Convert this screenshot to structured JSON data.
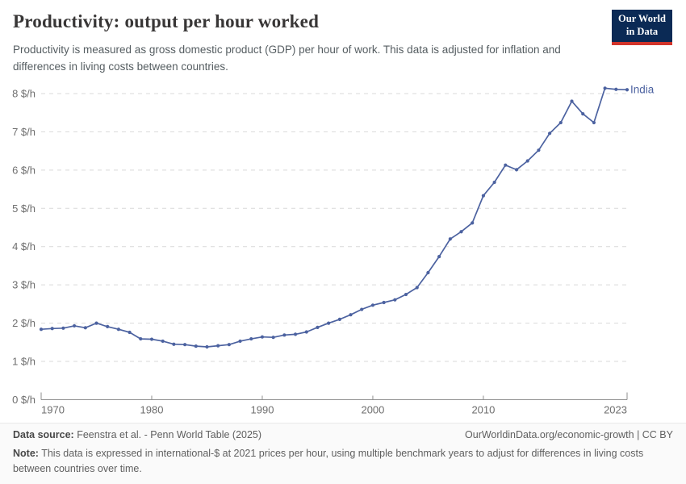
{
  "header": {
    "title": "Productivity: output per hour worked",
    "subtitle": "Productivity is measured as gross domestic product (GDP) per hour of work. This data is adjusted for inflation and differences in living costs between countries.",
    "logo": {
      "line1": "Our World",
      "line2": "in Data",
      "bg_color": "#0b2a55",
      "accent_color": "#d2342b"
    }
  },
  "chart_data": {
    "type": "line",
    "title": "Productivity: output per hour worked",
    "xlabel": "",
    "ylabel": "$/h",
    "grid": "horizontal-dashed",
    "legend_position": "end-of-line-label",
    "xlim": [
      1970,
      2023
    ],
    "ylim": [
      0,
      8.2
    ],
    "x_ticks": [
      1970,
      1980,
      1990,
      2000,
      2010,
      2023
    ],
    "y_ticks": [
      0,
      1,
      2,
      3,
      4,
      5,
      6,
      7,
      8
    ],
    "y_tick_suffix": " $/h",
    "years": [
      1970,
      1971,
      1972,
      1973,
      1974,
      1975,
      1976,
      1977,
      1978,
      1979,
      1980,
      1981,
      1982,
      1983,
      1984,
      1985,
      1986,
      1987,
      1988,
      1989,
      1990,
      1991,
      1992,
      1993,
      1994,
      1995,
      1996,
      1997,
      1998,
      1999,
      2000,
      2001,
      2002,
      2003,
      2004,
      2005,
      2006,
      2007,
      2008,
      2009,
      2010,
      2011,
      2012,
      2013,
      2014,
      2015,
      2016,
      2017,
      2018,
      2019,
      2020,
      2021,
      2022,
      2023
    ],
    "series": [
      {
        "name": "India",
        "color": "#4c62a0",
        "values": [
          1.84,
          1.86,
          1.87,
          1.93,
          1.88,
          2.0,
          1.91,
          1.84,
          1.76,
          1.59,
          1.58,
          1.53,
          1.45,
          1.44,
          1.4,
          1.38,
          1.41,
          1.44,
          1.53,
          1.59,
          1.64,
          1.63,
          1.69,
          1.71,
          1.77,
          1.89,
          2.0,
          2.1,
          2.22,
          2.36,
          2.47,
          2.54,
          2.61,
          2.75,
          2.93,
          3.32,
          3.74,
          4.2,
          4.39,
          4.62,
          5.33,
          5.68,
          6.13,
          6.01,
          6.24,
          6.52,
          6.96,
          7.24,
          7.8,
          7.47,
          7.24,
          8.14,
          8.11,
          8.1
        ]
      }
    ],
    "colors": {
      "gridline": "#d9d9d9",
      "axis": "#8f8f8f",
      "tick_label": "#6e6e6e"
    }
  },
  "footer": {
    "source_label": "Data source:",
    "source_text": "Feenstra et al. - Penn World Table (2025)",
    "attribution": "OurWorldinData.org/economic-growth | CC BY",
    "note_label": "Note:",
    "note_text": "This data is expressed in international-$ at 2021 prices per hour, using multiple benchmark years to adjust for differences in living costs between countries over time."
  }
}
